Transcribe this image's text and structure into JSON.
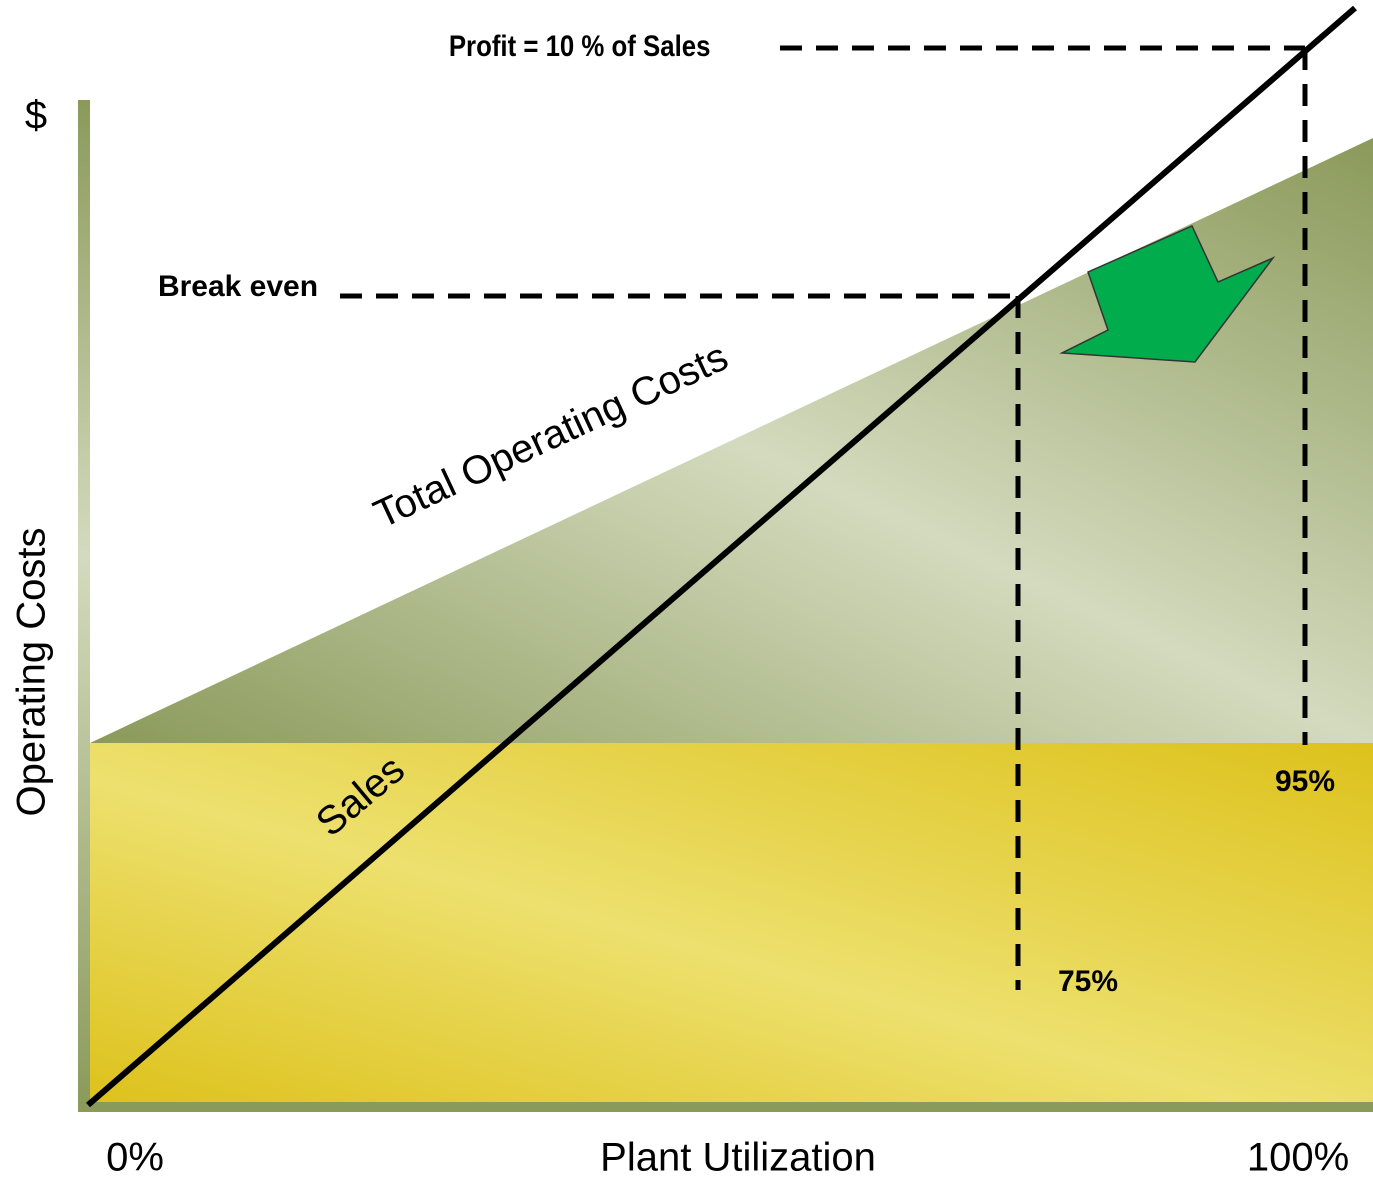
{
  "title": "Profit = 10 % of Sales",
  "break_even": "Break even",
  "y_axis": {
    "symbol": "$",
    "label": "Operating Costs"
  },
  "x_axis": {
    "start": "0%",
    "label": "Plant Utilization",
    "end": "100%"
  },
  "regions": {
    "costs": "Total Operating Costs",
    "sales": "Sales"
  },
  "markers": {
    "break_even_pct": "75%",
    "profit_pct": "95%"
  }
}
